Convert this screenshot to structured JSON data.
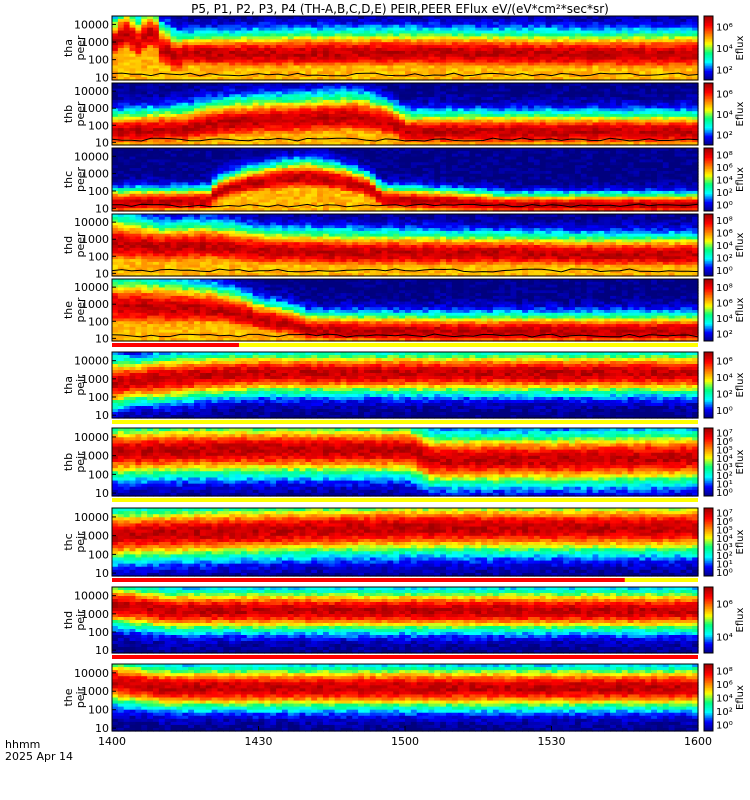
{
  "figure": {
    "title": "P5, P1, P2, P3, P4 (TH-A,B,C,D,E) PEIR,PEER EFlux eV/(eV*cm²*sec*sr)",
    "time_label": "hhmm",
    "date_label": "2025 Apr 14"
  },
  "chart_data": {
    "type": "heatmap",
    "x_axis": {
      "label": "hhmm",
      "range": [
        1400,
        1600
      ],
      "ticks": [
        "1400",
        "1430",
        "1500",
        "1530",
        "1600"
      ]
    },
    "y_axis": {
      "scale": "log",
      "range": [
        7,
        30000
      ],
      "ticks": [
        "10",
        "100",
        "1000",
        "10000"
      ],
      "units": "eV"
    },
    "colormap": [
      "#00007f",
      "#0000ff",
      "#00ffff",
      "#00ff7f",
      "#ffff00",
      "#ff7f00",
      "#ff0000",
      "#a00000"
    ],
    "panels": [
      {
        "probe": "tha",
        "species": "peer",
        "ylabel1": "tha",
        "ylabel2": "peer",
        "cb_label": "Eflux",
        "cb_ticks": [
          "10²",
          "10⁴",
          "10⁶"
        ],
        "cb_range": [
          1,
          7
        ],
        "has_sc_pot": true,
        "profile_times": [
          0,
          3,
          5,
          8,
          10,
          13,
          15,
          30,
          60,
          90,
          120
        ],
        "profile_peak": [
          400,
          3000,
          400,
          3000,
          400,
          100,
          200,
          200,
          250,
          200,
          200
        ],
        "profile_width": [
          0.6,
          0.6,
          0.6,
          0.6,
          0.6,
          0.6,
          0.5,
          0.55,
          0.55,
          0.55,
          0.55
        ],
        "fill_color": "#a00000"
      },
      {
        "probe": "thb",
        "species": "peer",
        "ylabel1": "thb",
        "ylabel2": "peer",
        "cb_label": "Eflux",
        "cb_ticks": [
          "10²",
          "10⁴",
          "10⁶"
        ],
        "cb_range": [
          1,
          7
        ],
        "has_sc_pot": true,
        "profile_times": [
          0,
          15,
          25,
          35,
          50,
          60,
          80,
          100,
          120
        ],
        "profile_peak": [
          40,
          60,
          150,
          200,
          300,
          40,
          40,
          40,
          40
        ],
        "profile_width": [
          0.5,
          0.55,
          0.6,
          0.6,
          0.6,
          0.5,
          0.5,
          0.5,
          0.5
        ],
        "fill_color": "#ff0000"
      },
      {
        "probe": "thc",
        "species": "peer",
        "ylabel1": "thc",
        "ylabel2": "peer",
        "cb_label": "Eflux",
        "cb_ticks": [
          "10⁰",
          "10²",
          "10⁴",
          "10⁶",
          "10⁸"
        ],
        "cb_range": [
          0,
          8
        ],
        "has_sc_pot": true,
        "profile_times": [
          0,
          20,
          40,
          55,
          80,
          100,
          120
        ],
        "profile_peak": [
          20,
          25,
          600,
          30,
          15,
          15,
          15
        ],
        "profile_width": [
          0.35,
          0.35,
          0.45,
          0.35,
          0.3,
          0.3,
          0.3
        ],
        "fill_color": "#ff0000"
      },
      {
        "probe": "thd",
        "species": "peer",
        "ylabel1": "thd",
        "ylabel2": "peer",
        "cb_label": "Eflux",
        "cb_ticks": [
          "10⁰",
          "10²",
          "10⁴",
          "10⁶",
          "10⁸"
        ],
        "cb_range": [
          0,
          8
        ],
        "has_sc_pot": true,
        "profile_times": [
          0,
          10,
          20,
          30,
          50,
          80,
          100,
          120
        ],
        "profile_peak": [
          600,
          300,
          400,
          200,
          150,
          150,
          120,
          120
        ],
        "profile_width": [
          0.7,
          0.6,
          0.6,
          0.55,
          0.55,
          0.5,
          0.5,
          0.5
        ],
        "fill_color": "#a00000"
      },
      {
        "probe": "the",
        "species": "peer",
        "ylabel1": "the",
        "ylabel2": "peer",
        "cb_label": "Eflux",
        "cb_ticks": [
          "10²",
          "10⁴",
          "10⁶",
          "10⁸"
        ],
        "cb_range": [
          1,
          9
        ],
        "has_sc_pot": true,
        "profile_times": [
          0,
          10,
          20,
          30,
          40,
          60,
          80,
          120
        ],
        "profile_peak": [
          800,
          600,
          500,
          120,
          30,
          25,
          25,
          25
        ],
        "profile_width": [
          0.7,
          0.7,
          0.6,
          0.5,
          0.45,
          0.45,
          0.45,
          0.45
        ],
        "fill_color": "#a00000"
      },
      {
        "probe": "tha",
        "species": "peir",
        "ylabel1": "tha",
        "ylabel2": "peir",
        "cb_label": "Eflux",
        "cb_ticks": [
          "10⁰",
          "10²",
          "10⁴",
          "10⁶"
        ],
        "cb_range": [
          0,
          7
        ],
        "has_sc_pot": false,
        "profile_times": [
          0,
          5,
          10,
          30,
          60,
          90,
          120
        ],
        "profile_peak": [
          600,
          800,
          1000,
          2000,
          2000,
          2000,
          2000
        ],
        "profile_width": [
          0.6,
          0.5,
          0.55,
          0.5,
          0.5,
          0.5,
          0.5
        ],
        "fill_color": "#ff0000"
      },
      {
        "probe": "thb",
        "species": "peir",
        "ylabel1": "thb",
        "ylabel2": "peir",
        "cb_label": "Eflux",
        "cb_ticks": [
          "10⁰",
          "10¹",
          "10²",
          "10³",
          "10⁴",
          "10⁵",
          "10⁶",
          "10⁷"
        ],
        "cb_range": [
          0,
          7
        ],
        "has_sc_pot": false,
        "profile_times": [
          0,
          20,
          40,
          60,
          65,
          90,
          120
        ],
        "profile_peak": [
          1500,
          2000,
          2000,
          2000,
          600,
          600,
          800
        ],
        "profile_width": [
          0.6,
          0.6,
          0.6,
          0.6,
          0.6,
          0.6,
          0.6
        ],
        "fill_color": "#ffff00"
      },
      {
        "probe": "thc",
        "species": "peir",
        "ylabel1": "thc",
        "ylabel2": "peir",
        "cb_label": "Eflux",
        "cb_ticks": [
          "10⁰",
          "10¹",
          "10²",
          "10³",
          "10⁴",
          "10⁵",
          "10⁶",
          "10⁷"
        ],
        "cb_range": [
          0,
          7
        ],
        "has_sc_pot": false,
        "profile_times": [
          0,
          20,
          40,
          60,
          80,
          100,
          120
        ],
        "profile_peak": [
          1000,
          1500,
          2000,
          2500,
          2500,
          2500,
          2500
        ],
        "profile_width": [
          0.6,
          0.6,
          0.6,
          0.6,
          0.6,
          0.6,
          0.6
        ],
        "fill_color": "#00ff7f"
      },
      {
        "probe": "thd",
        "species": "peir",
        "ylabel1": "thd",
        "ylabel2": "peir",
        "cb_label": "Eflux",
        "cb_ticks": [
          "10⁴",
          "10⁶"
        ],
        "cb_range": [
          2,
          7
        ],
        "has_sc_pot": false,
        "profile_times": [
          0,
          10,
          20,
          30,
          60,
          90,
          120
        ],
        "profile_peak": [
          3000,
          1500,
          1500,
          1500,
          1500,
          1500,
          1500
        ],
        "profile_width": [
          0.5,
          0.5,
          0.5,
          0.5,
          0.5,
          0.5,
          0.5
        ],
        "fill_color": "#ff0000"
      },
      {
        "probe": "the",
        "species": "peir",
        "ylabel1": "the",
        "ylabel2": "peir",
        "cb_label": "Eflux",
        "cb_ticks": [
          "10⁰",
          "10²",
          "10⁴",
          "10⁶",
          "10⁸"
        ],
        "cb_range": [
          0,
          8
        ],
        "has_sc_pot": false,
        "profile_times": [
          0,
          10,
          20,
          30,
          60,
          90,
          120
        ],
        "profile_peak": [
          3000,
          1500,
          1500,
          1500,
          1500,
          1500,
          1500
        ],
        "profile_width": [
          0.5,
          0.5,
          0.5,
          0.5,
          0.5,
          0.5,
          0.5
        ],
        "fill_color": "#ff0000"
      }
    ],
    "mode_bars": [
      {
        "after_panel": 4,
        "red_range": [
          0,
          26
        ]
      },
      {
        "after_panel": 5,
        "red_range": []
      },
      {
        "after_panel": 6,
        "red_range": []
      },
      {
        "after_panel": 7,
        "red_range": [
          0,
          105
        ]
      },
      {
        "after_panel": 8,
        "red_range": [
          0,
          120
        ]
      }
    ]
  }
}
